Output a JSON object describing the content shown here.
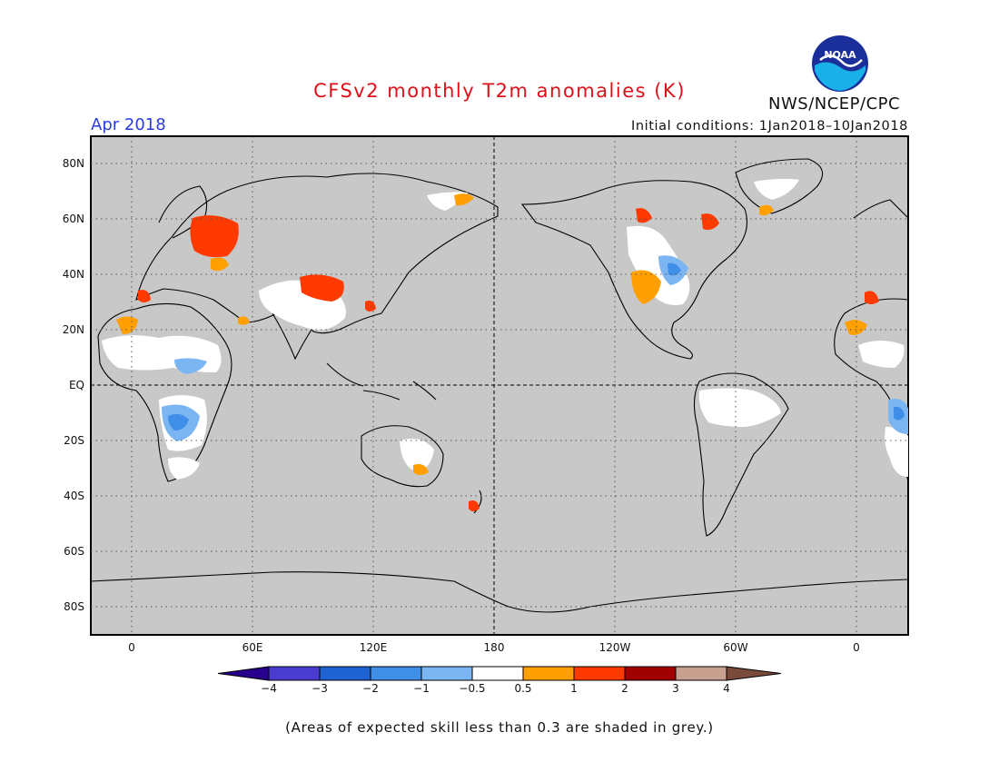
{
  "header": {
    "title": "CFSv2 monthly T2m anomalies (K)",
    "period": "Apr 2018",
    "initial_conditions": "Initial conditions: 1Jan2018–10Jan2018",
    "agency": "NWS/NCEP/CPC",
    "logo_text": "NOAA"
  },
  "colors": {
    "title": "#e0101a",
    "period": "#2a3ee0",
    "land_grey": "#c8c8c8",
    "coast": "#000000"
  },
  "map": {
    "lat_labels": [
      "80N",
      "60N",
      "40N",
      "20N",
      "EQ",
      "20S",
      "40S",
      "60S",
      "80S"
    ],
    "lon_labels": [
      "0",
      "60E",
      "120E",
      "180",
      "120W",
      "60W",
      "0"
    ]
  },
  "colorbar": {
    "labels": [
      "−4",
      "−3",
      "−2",
      "−1",
      "−0.5",
      "0.5",
      "1",
      "2",
      "3",
      "4"
    ],
    "colors": [
      "#28008c",
      "#4a3ccf",
      "#1f62d2",
      "#3f8ee8",
      "#7cb6f2",
      "#ffffff",
      "#ffa000",
      "#ff3a00",
      "#a00000",
      "#c8a090",
      "#7a4a3a"
    ]
  },
  "footnote": "(Areas of expected skill less than 0.3 are shaded in grey.)"
}
